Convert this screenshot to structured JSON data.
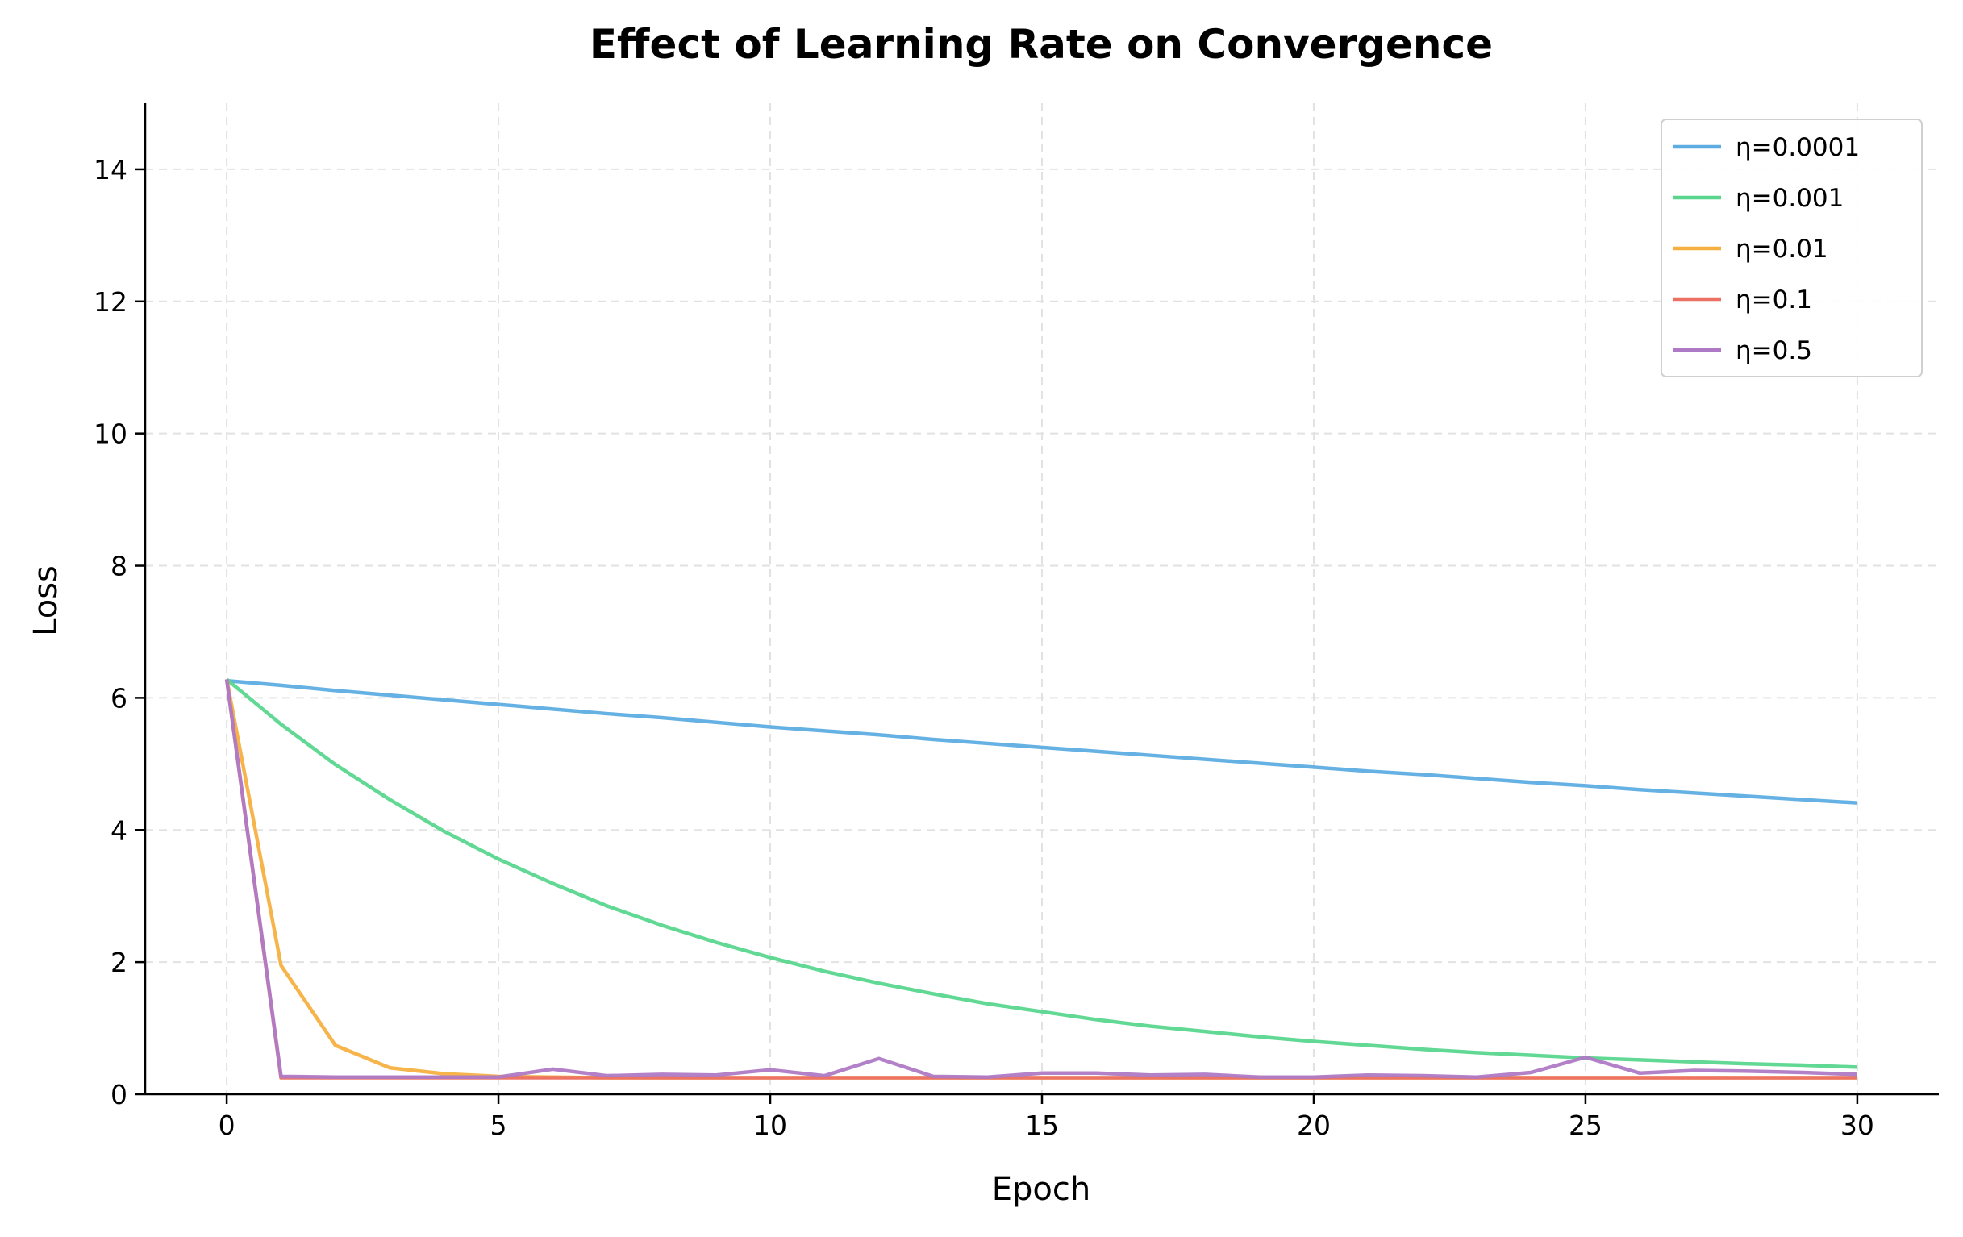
{
  "chart_data": {
    "type": "line",
    "title": "Effect of Learning Rate on Convergence",
    "xlabel": "Epoch",
    "ylabel": "Loss",
    "xlim": [
      -1.5,
      31.5
    ],
    "ylim": [
      0,
      15
    ],
    "xticks": [
      0,
      5,
      10,
      15,
      20,
      25,
      30
    ],
    "yticks": [
      0,
      2,
      4,
      6,
      8,
      10,
      12,
      14
    ],
    "grid": true,
    "legend_position": "top-right",
    "x": [
      0,
      1,
      2,
      3,
      4,
      5,
      6,
      7,
      8,
      9,
      10,
      11,
      12,
      13,
      14,
      15,
      16,
      17,
      18,
      19,
      20,
      21,
      22,
      23,
      24,
      25,
      26,
      27,
      28,
      29,
      30
    ],
    "series": [
      {
        "name": "η=0.0001",
        "color": "#5DADE2",
        "values": [
          6.26,
          6.19,
          6.11,
          6.04,
          5.97,
          5.9,
          5.83,
          5.76,
          5.7,
          5.63,
          5.56,
          5.5,
          5.44,
          5.37,
          5.31,
          5.25,
          5.19,
          5.13,
          5.07,
          5.01,
          4.95,
          4.89,
          4.84,
          4.78,
          4.72,
          4.67,
          4.61,
          4.56,
          4.51,
          4.46,
          4.41
        ]
      },
      {
        "name": "η=0.001",
        "color": "#58D68D",
        "values": [
          6.28,
          5.6,
          4.99,
          4.46,
          3.98,
          3.56,
          3.19,
          2.85,
          2.56,
          2.3,
          2.07,
          1.86,
          1.68,
          1.52,
          1.37,
          1.25,
          1.13,
          1.03,
          0.95,
          0.87,
          0.8,
          0.74,
          0.68,
          0.63,
          0.59,
          0.55,
          0.52,
          0.49,
          0.46,
          0.44,
          0.41
        ]
      },
      {
        "name": "η=0.01",
        "color": "#F5B041",
        "values": [
          6.28,
          1.95,
          0.74,
          0.4,
          0.31,
          0.27,
          0.26,
          0.25,
          0.25,
          0.25,
          0.25,
          0.25,
          0.25,
          0.25,
          0.25,
          0.25,
          0.25,
          0.25,
          0.25,
          0.25,
          0.25,
          0.25,
          0.25,
          0.25,
          0.25,
          0.25,
          0.25,
          0.25,
          0.25,
          0.25,
          0.25
        ]
      },
      {
        "name": "η=0.1",
        "color": "#EC7063",
        "values": [
          6.28,
          0.25,
          0.25,
          0.25,
          0.25,
          0.25,
          0.25,
          0.25,
          0.25,
          0.25,
          0.25,
          0.25,
          0.25,
          0.25,
          0.25,
          0.25,
          0.25,
          0.25,
          0.25,
          0.25,
          0.25,
          0.25,
          0.25,
          0.25,
          0.25,
          0.25,
          0.25,
          0.25,
          0.25,
          0.25,
          0.25
        ]
      },
      {
        "name": "η=0.5",
        "color": "#AF7AC5",
        "values": [
          6.28,
          0.27,
          0.26,
          0.26,
          0.26,
          0.26,
          0.38,
          0.28,
          0.3,
          0.29,
          0.37,
          0.28,
          0.54,
          0.27,
          0.26,
          0.32,
          0.32,
          0.29,
          0.3,
          0.26,
          0.26,
          0.29,
          0.28,
          0.26,
          0.33,
          0.56,
          0.32,
          0.36,
          0.35,
          0.33,
          0.3
        ]
      }
    ]
  }
}
